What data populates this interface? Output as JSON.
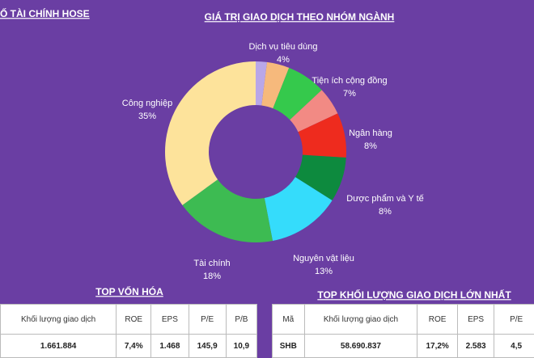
{
  "header": {
    "title": "SỐ TÀI CHÍNH HOSE"
  },
  "chart_data": {
    "type": "pie",
    "donut": true,
    "title": "GIÁ TRỊ GIAO DỊCH THEO NHÓM NGÀNH",
    "categories": [
      null,
      "Dịch vụ tiêu dùng",
      "Tiện ích cộng đồng",
      null,
      "Ngân hàng",
      "Dược phẩm và Y tế",
      "Nguyên vật liệu",
      "Tài chính",
      "Công nghiệp"
    ],
    "values": [
      2,
      4,
      7,
      5,
      8,
      8,
      13,
      18,
      35
    ],
    "value_labels": [
      null,
      "4%",
      "7%",
      null,
      "8%",
      "8%",
      "13%",
      "18%",
      "35%"
    ],
    "colors": [
      "#b9a7e8",
      "#f6b97c",
      "#35c94c",
      "#f28a84",
      "#ee2b1e",
      "#0d8a3e",
      "#35dcfb",
      "#3dbb52",
      "#fde39b"
    ]
  },
  "tables": [
    {
      "title": "TOP VỐN HÓA",
      "columns": [
        "Khối lượng giao dịch",
        "ROE",
        "EPS",
        "P/E",
        "P/B"
      ],
      "rows": [
        [
          "1.661.884",
          "7,4%",
          "1.468",
          "145,9",
          "10,9"
        ]
      ]
    },
    {
      "title": "TOP KHỐI LƯỢNG GIAO DỊCH LỚN NHẤT",
      "columns": [
        "Mã",
        "Khối lượng giao dịch",
        "ROE",
        "EPS",
        "P/E"
      ],
      "rows": [
        [
          "SHB",
          "58.690.837",
          "17,2%",
          "2.583",
          "4,5"
        ]
      ]
    }
  ]
}
